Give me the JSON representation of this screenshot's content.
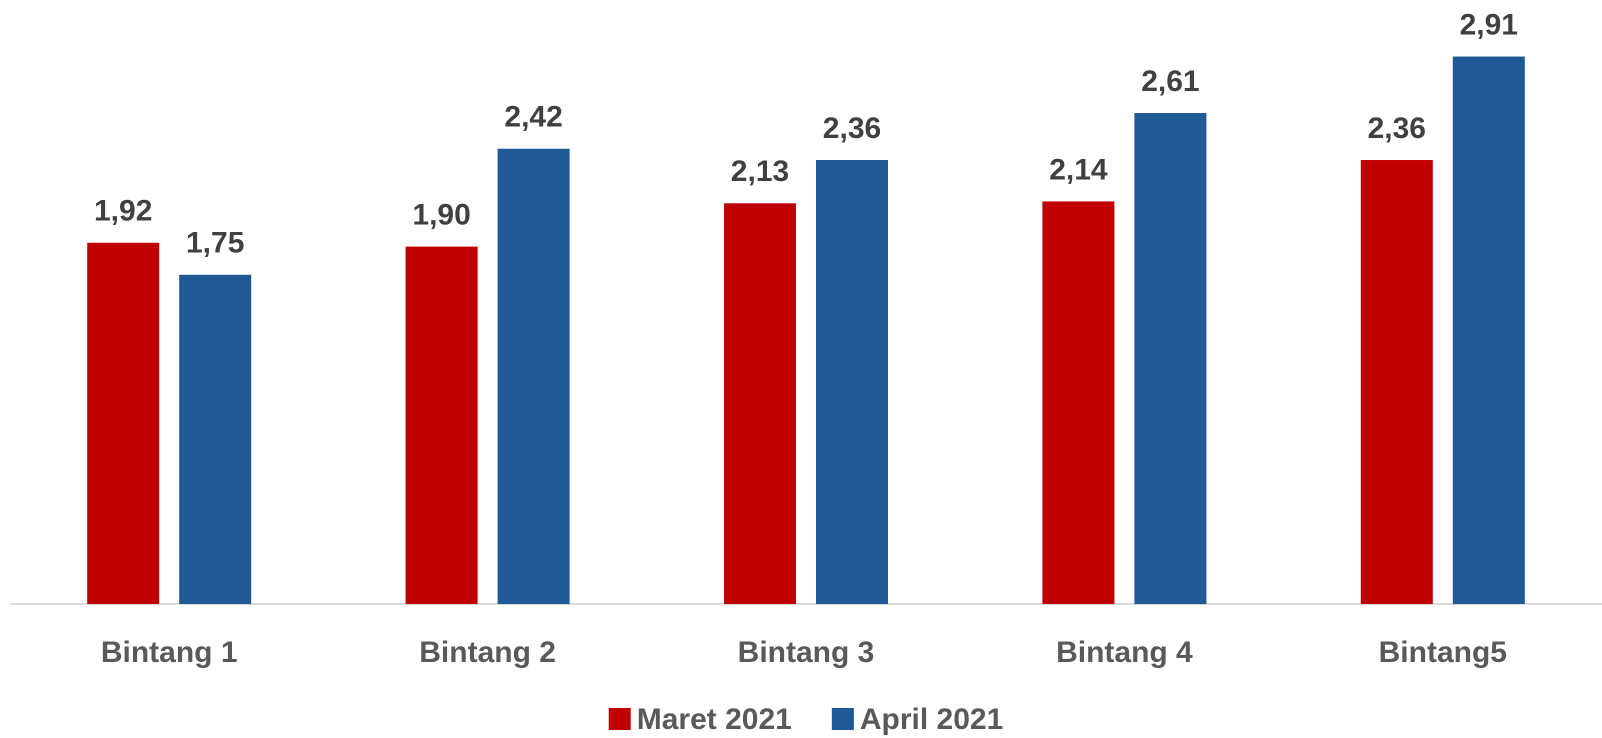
{
  "chart_data": {
    "type": "bar",
    "categories": [
      "Bintang 1",
      "Bintang 2",
      "Bintang 3",
      "Bintang 4",
      "Bintang5"
    ],
    "series": [
      {
        "name": "Maret 2021",
        "color": "#c00000",
        "values": [
          1.92,
          1.9,
          2.13,
          2.14,
          2.36
        ],
        "value_labels": [
          "1,92",
          "1,90",
          "2,13",
          "2,14",
          "2,36"
        ]
      },
      {
        "name": "April 2021",
        "color": "#1f5a96",
        "values": [
          1.75,
          2.42,
          2.36,
          2.61,
          2.91
        ],
        "value_labels": [
          "1,75",
          "2,42",
          "2,36",
          "2,61",
          "2,91"
        ]
      }
    ],
    "ylim": [
      0,
      3.2
    ],
    "legend": "bottom"
  }
}
